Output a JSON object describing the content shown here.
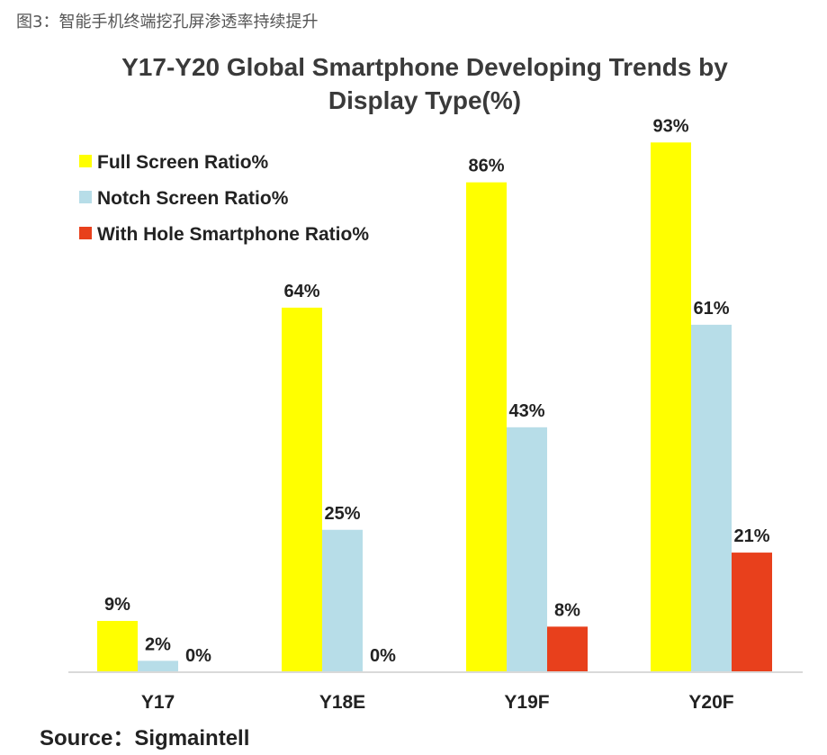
{
  "caption": "图3：智能手机终端挖孔屏渗透率持续提升",
  "source": "Source：Sigmaintell",
  "chart_data": {
    "type": "bar",
    "title": "Y17-Y20 Global Smartphone Developing Trends by Display Type(%)",
    "title_lines": [
      "Y17-Y20 Global Smartphone Developing Trends by",
      "Display Type(%)"
    ],
    "categories": [
      "Y17",
      "Y18E",
      "Y19F",
      "Y20F"
    ],
    "series": [
      {
        "name": "Full Screen Ratio%",
        "values": [
          9,
          64,
          86,
          93
        ],
        "labels": [
          "9%",
          "64%",
          "86%",
          "93%"
        ],
        "color": "#ffff00"
      },
      {
        "name": "Notch Screen Ratio%",
        "values": [
          2,
          25,
          43,
          61
        ],
        "labels": [
          "2%",
          "25%",
          "43%",
          "61%"
        ],
        "color": "#b7dde8"
      },
      {
        "name": "With Hole Smartphone Ratio%",
        "values": [
          0,
          0,
          8,
          21
        ],
        "labels": [
          "0%",
          "0%",
          "8%",
          "21%"
        ],
        "color": "#e8401c"
      }
    ],
    "ylim": [
      0,
      100
    ],
    "grid": false,
    "legend_position": "top-left",
    "axis_color": "#d9d9d9"
  }
}
